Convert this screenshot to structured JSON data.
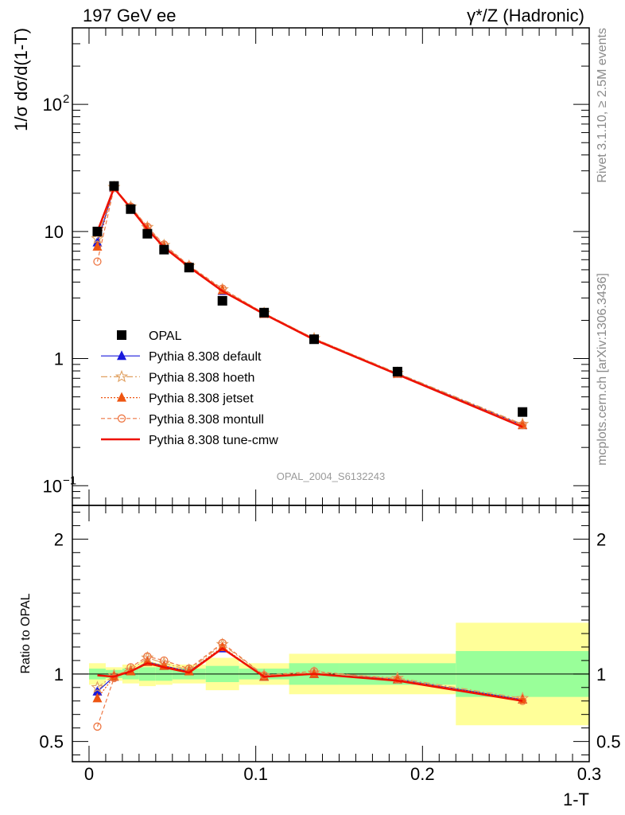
{
  "header": {
    "left": "197 GeV ee",
    "right": "γ*/Z (Hadronic)"
  },
  "side_text": {
    "rivet": "Rivet 3.1.10, ≥ 2.5M events",
    "mcplots": "mcplots.cern.ch [arXiv:1306.3436]"
  },
  "analysis_id": "OPAL_2004_S6132243",
  "chart_data": [
    {
      "type": "scatter",
      "panel": "main",
      "yscale": "log",
      "xlabel": "1-T",
      "ylabel": "1/σ dσ/d(1-T)",
      "xlim": [
        -0.01,
        0.3
      ],
      "ylim": [
        0.07,
        400
      ],
      "y_ticks": [
        {
          "value": 0.1,
          "label": "10",
          "exp": "−1"
        },
        {
          "value": 1,
          "label": "1",
          "exp": ""
        },
        {
          "value": 10,
          "label": "10",
          "exp": ""
        },
        {
          "value": 100,
          "label": "10",
          "exp": "2"
        }
      ],
      "legend": {
        "position": "middle-left"
      },
      "x": [
        0.005,
        0.015,
        0.025,
        0.035,
        0.045,
        0.06,
        0.08,
        0.105,
        0.135,
        0.185,
        0.26
      ],
      "series": [
        {
          "name": "OPAL",
          "color": "#000000",
          "marker": "square",
          "line": "none",
          "values": [
            10.0,
            22.8,
            15.0,
            9.6,
            7.2,
            5.2,
            2.85,
            2.3,
            1.42,
            0.79,
            0.38
          ]
        },
        {
          "name": "Pythia 8.308 default",
          "color": "#1a1adc",
          "marker": "triangle",
          "line": "solid",
          "values": [
            8.2,
            22.0,
            15.3,
            10.5,
            7.6,
            5.3,
            3.4,
            2.25,
            1.42,
            0.76,
            0.3
          ]
        },
        {
          "name": "Pythia 8.308 hoeth",
          "color": "#e0a060",
          "marker": "star",
          "line": "dashdot",
          "values": [
            8.8,
            22.3,
            15.6,
            10.8,
            7.8,
            5.35,
            3.5,
            2.28,
            1.44,
            0.77,
            0.305
          ]
        },
        {
          "name": "Pythia 8.308 jetset",
          "color": "#ee5511",
          "marker": "triangle",
          "line": "dotted",
          "values": [
            7.6,
            22.2,
            15.4,
            10.5,
            7.6,
            5.3,
            3.45,
            2.25,
            1.42,
            0.76,
            0.3
          ]
        },
        {
          "name": "Pythia 8.308 montull",
          "color": "#ee7744",
          "marker": "circle-open",
          "line": "dashed",
          "values": [
            5.8,
            22.0,
            15.7,
            10.9,
            7.9,
            5.4,
            3.55,
            2.27,
            1.44,
            0.76,
            0.3
          ]
        },
        {
          "name": "Pythia 8.308 tune-cmw",
          "color": "#ee1100",
          "marker": "none",
          "line": "solid",
          "values": [
            10.0,
            22.0,
            15.2,
            10.4,
            7.5,
            5.25,
            3.4,
            2.24,
            1.41,
            0.75,
            0.29
          ]
        }
      ]
    },
    {
      "type": "scatter",
      "panel": "ratio",
      "xlabel": "1-T",
      "ylabel": "Ratio to OPAL",
      "xlim": [
        -0.01,
        0.3
      ],
      "ylim": [
        0.35,
        2.25
      ],
      "x_ticks": [
        0,
        0.1,
        0.2,
        0.3
      ],
      "x_tick_labels": [
        "0",
        "0.1",
        "0.2",
        "0.3"
      ],
      "y_ticks": [
        0.5,
        1,
        2
      ],
      "y_tick_labels": [
        "0.5",
        "1",
        "2"
      ],
      "uncertainty_bands": [
        {
          "x_lo": 0.0,
          "x_hi": 0.01,
          "inner": [
            0.96,
            1.04
          ],
          "outer": [
            0.92,
            1.08
          ]
        },
        {
          "x_lo": 0.01,
          "x_hi": 0.02,
          "inner": [
            0.97,
            1.03
          ],
          "outer": [
            0.95,
            1.05
          ]
        },
        {
          "x_lo": 0.02,
          "x_hi": 0.03,
          "inner": [
            0.96,
            1.04
          ],
          "outer": [
            0.93,
            1.07
          ]
        },
        {
          "x_lo": 0.03,
          "x_hi": 0.04,
          "inner": [
            0.95,
            1.05
          ],
          "outer": [
            0.91,
            1.09
          ]
        },
        {
          "x_lo": 0.04,
          "x_hi": 0.05,
          "inner": [
            0.95,
            1.05
          ],
          "outer": [
            0.92,
            1.08
          ]
        },
        {
          "x_lo": 0.05,
          "x_hi": 0.07,
          "inner": [
            0.96,
            1.04
          ],
          "outer": [
            0.93,
            1.07
          ]
        },
        {
          "x_lo": 0.07,
          "x_hi": 0.09,
          "inner": [
            0.94,
            1.06
          ],
          "outer": [
            0.88,
            1.12
          ]
        },
        {
          "x_lo": 0.09,
          "x_hi": 0.12,
          "inner": [
            0.96,
            1.04
          ],
          "outer": [
            0.92,
            1.08
          ]
        },
        {
          "x_lo": 0.12,
          "x_hi": 0.15,
          "inner": [
            0.92,
            1.08
          ],
          "outer": [
            0.85,
            1.15
          ]
        },
        {
          "x_lo": 0.15,
          "x_hi": 0.22,
          "inner": [
            0.92,
            1.08
          ],
          "outer": [
            0.85,
            1.15
          ]
        },
        {
          "x_lo": 0.22,
          "x_hi": 0.3,
          "inner": [
            0.83,
            1.17
          ],
          "outer": [
            0.62,
            1.38
          ]
        }
      ],
      "x": [
        0.005,
        0.015,
        0.025,
        0.035,
        0.045,
        0.06,
        0.08,
        0.105,
        0.135,
        0.185,
        0.26
      ],
      "series": [
        {
          "name": "Pythia 8.308 default",
          "values": [
            0.87,
            0.98,
            1.02,
            1.09,
            1.06,
            1.02,
            1.19,
            0.98,
            1.0,
            0.96,
            0.81
          ]
        },
        {
          "name": "Pythia 8.308 hoeth",
          "values": [
            0.9,
            0.99,
            1.03,
            1.12,
            1.08,
            1.03,
            1.22,
            0.99,
            1.01,
            0.97,
            0.82
          ]
        },
        {
          "name": "Pythia 8.308 jetset",
          "values": [
            0.82,
            0.98,
            1.02,
            1.09,
            1.06,
            1.02,
            1.2,
            0.98,
            1.0,
            0.96,
            0.81
          ]
        },
        {
          "name": "Pythia 8.308 montull",
          "values": [
            0.61,
            0.97,
            1.05,
            1.13,
            1.1,
            1.04,
            1.23,
            0.99,
            1.02,
            0.96,
            0.8
          ]
        },
        {
          "name": "Pythia 8.308 tune-cmw",
          "values": [
            0.99,
            0.98,
            1.02,
            1.08,
            1.05,
            1.01,
            1.19,
            0.98,
            1.0,
            0.95,
            0.8
          ]
        }
      ]
    }
  ]
}
